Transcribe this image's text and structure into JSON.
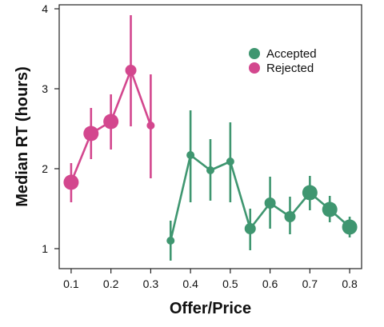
{
  "chart_data": {
    "type": "line",
    "xlabel": "Offer/Price",
    "ylabel": "Median RT (hours)",
    "xlim": [
      0.07,
      0.83
    ],
    "ylim": [
      0.75,
      4.05
    ],
    "xticks": [
      "0.1",
      "0.2",
      "0.3",
      "0.4",
      "0.5",
      "0.6",
      "0.7",
      "0.8"
    ],
    "yticks": [
      "1",
      "2",
      "3",
      "4"
    ],
    "legend_position": "top-right",
    "grid": false,
    "series": [
      {
        "name": "Accepted",
        "color": "#3f9670",
        "points": [
          {
            "x": 0.35,
            "y": 1.1,
            "lo": 0.85,
            "hi": 1.35,
            "size": "small"
          },
          {
            "x": 0.4,
            "y": 2.17,
            "lo": 1.58,
            "hi": 2.73,
            "size": "small"
          },
          {
            "x": 0.45,
            "y": 1.98,
            "lo": 1.6,
            "hi": 2.37,
            "size": "small"
          },
          {
            "x": 0.5,
            "y": 2.09,
            "lo": 1.58,
            "hi": 2.58,
            "size": "small"
          },
          {
            "x": 0.55,
            "y": 1.25,
            "lo": 0.98,
            "hi": 1.5,
            "size": "medium"
          },
          {
            "x": 0.6,
            "y": 1.57,
            "lo": 1.25,
            "hi": 1.9,
            "size": "medium"
          },
          {
            "x": 0.65,
            "y": 1.4,
            "lo": 1.18,
            "hi": 1.65,
            "size": "medium"
          },
          {
            "x": 0.7,
            "y": 1.7,
            "lo": 1.48,
            "hi": 1.91,
            "size": "large"
          },
          {
            "x": 0.75,
            "y": 1.49,
            "lo": 1.33,
            "hi": 1.66,
            "size": "large"
          },
          {
            "x": 0.8,
            "y": 1.27,
            "lo": 1.14,
            "hi": 1.4,
            "size": "large"
          }
        ]
      },
      {
        "name": "Rejected",
        "color": "#d3478e",
        "points": [
          {
            "x": 0.1,
            "y": 1.83,
            "lo": 1.58,
            "hi": 2.07,
            "size": "large"
          },
          {
            "x": 0.15,
            "y": 2.44,
            "lo": 2.12,
            "hi": 2.76,
            "size": "large"
          },
          {
            "x": 0.2,
            "y": 2.59,
            "lo": 2.24,
            "hi": 2.93,
            "size": "large"
          },
          {
            "x": 0.25,
            "y": 3.23,
            "lo": 2.53,
            "hi": 3.92,
            "size": "medium"
          },
          {
            "x": 0.3,
            "y": 2.54,
            "lo": 1.88,
            "hi": 3.18,
            "size": "small"
          }
        ]
      }
    ]
  }
}
